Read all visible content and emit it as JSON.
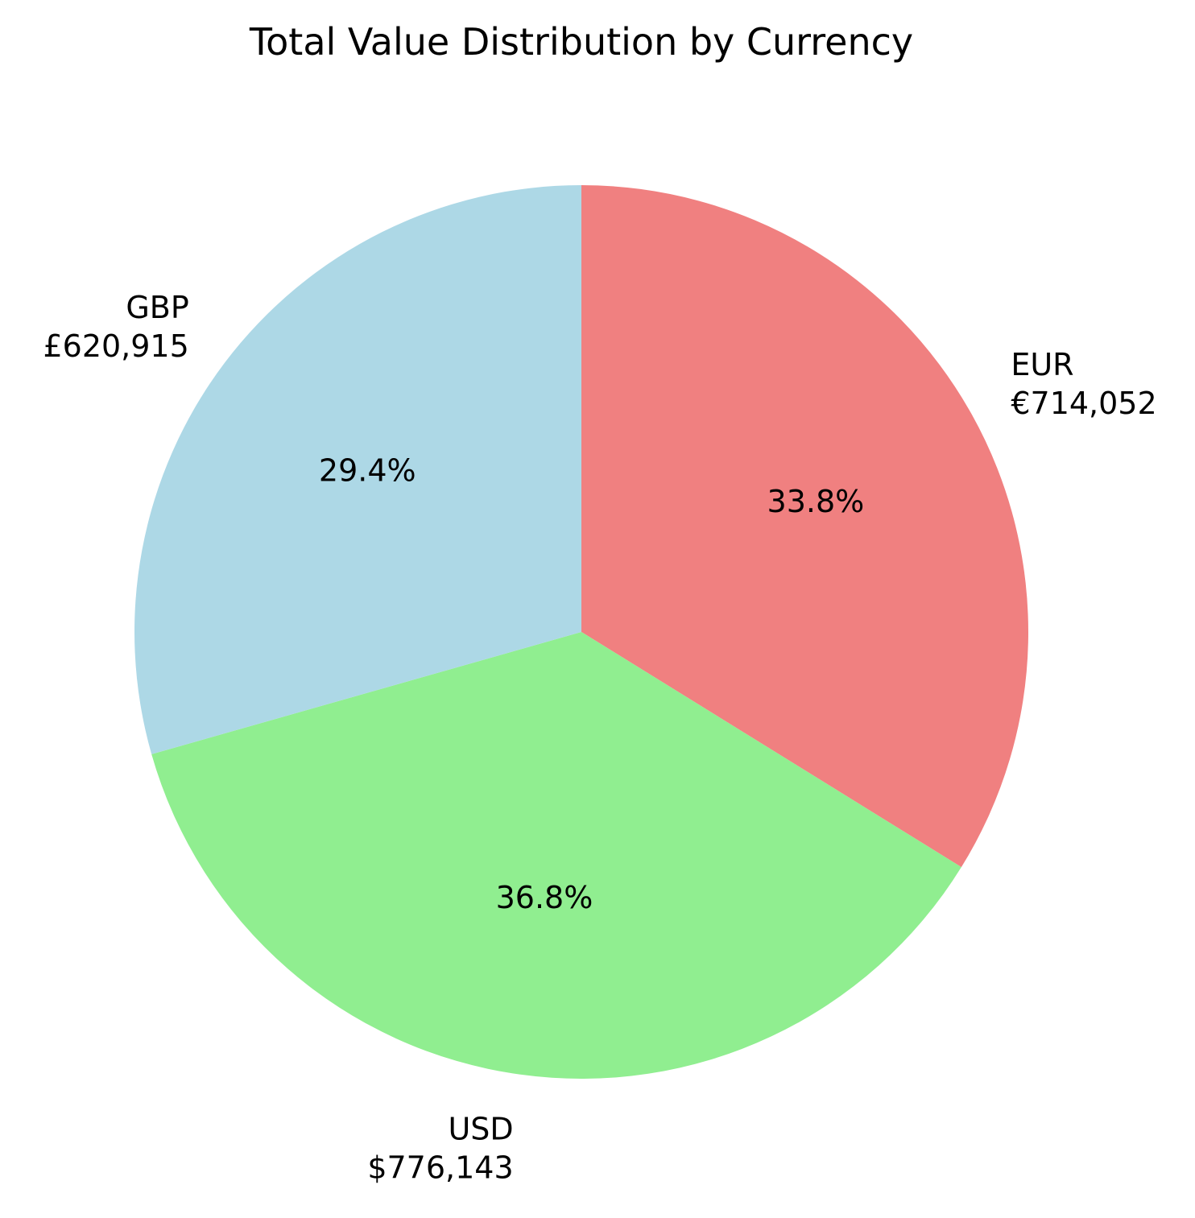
{
  "chart_data": {
    "type": "pie",
    "title": "Total Value Distribution by Currency",
    "start_angle_deg": 90,
    "direction": "clockwise",
    "slices": [
      {
        "label": "EUR",
        "value": 714052,
        "value_text": "€714,052",
        "pct_text": "33.8%",
        "color": "#f08080"
      },
      {
        "label": "USD",
        "value": 776143,
        "value_text": "$776,143",
        "pct_text": "36.8%",
        "color": "#90ee90"
      },
      {
        "label": "GBP",
        "value": 620915,
        "value_text": "£620,915",
        "pct_text": "29.4%",
        "color": "#add8e6"
      }
    ]
  }
}
